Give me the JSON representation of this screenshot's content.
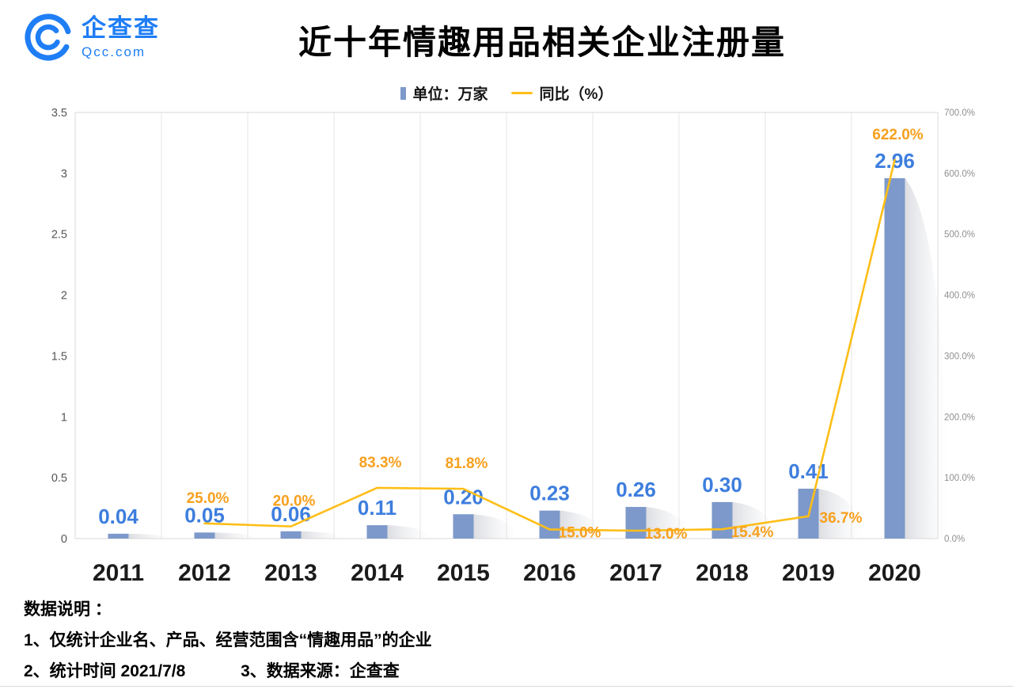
{
  "brand": {
    "name": "企查查",
    "domain": "Qcc.com",
    "color": "#1f7ef5"
  },
  "title": "近十年情趣用品相关企业注册量",
  "legend": {
    "bar_label": "单位：万家",
    "line_label": "同比（%）"
  },
  "footnotes": {
    "heading": "数据说明 ：",
    "line1": "1、仅统计企业名、产品、经营范围含“情趣用品”的企业",
    "line2": "2、统计时间 2021/7/8",
    "line3": "3、数据来源：企查查"
  },
  "chart_data": {
    "type": "bar",
    "subtype": "bar-line-combo",
    "title": "近十年情趣用品相关企业注册量",
    "categories": [
      "2011",
      "2012",
      "2013",
      "2014",
      "2015",
      "2016",
      "2017",
      "2018",
      "2019",
      "2020"
    ],
    "series": [
      {
        "name": "单位：万家",
        "type": "bar",
        "color": "#7d99cb",
        "label_color": "#3d7ede",
        "values": [
          0.04,
          0.05,
          0.06,
          0.11,
          0.2,
          0.23,
          0.26,
          0.3,
          0.41,
          2.96
        ],
        "labels": [
          "0.04",
          "0.05",
          "0.06",
          "0.11",
          "0.20",
          "0.23",
          "0.26",
          "0.30",
          "0.41",
          "2.96"
        ]
      },
      {
        "name": "同比（%）",
        "type": "line",
        "color": "#ffbe17",
        "label_color": "#f7a01e",
        "values": [
          null,
          25.0,
          20.0,
          83.3,
          81.8,
          15.0,
          13.0,
          15.4,
          36.7,
          622.0
        ],
        "labels": [
          "",
          "25.0%",
          "20.0%",
          "83.3%",
          "81.8%",
          "15.0%",
          "13.0%",
          "15.4%",
          "36.7%",
          "622.0%"
        ],
        "label_positions": [
          "",
          "above",
          "above",
          "above",
          "above",
          "below",
          "below",
          "below",
          "right",
          "above"
        ]
      }
    ],
    "left_axis": {
      "min": 0,
      "max": 3.5,
      "step": 0.5,
      "ticks": [
        "3.5",
        "3",
        "2.5",
        "2",
        "1.5",
        "1",
        "0.5",
        "0"
      ]
    },
    "right_axis": {
      "min": 0,
      "max": 700,
      "step": 100,
      "ticks": [
        "700.0%",
        "600.0%",
        "500.0%",
        "400.0%",
        "300.0%",
        "200.0%",
        "100.0%",
        "0.0%"
      ]
    },
    "grid": "vertical",
    "legend_position": "top",
    "style": {
      "grid_color": "#e4e4e4",
      "border_color": "#dadada",
      "axis_text_color": "#555555",
      "right_axis_text_color": "#8f8f8f",
      "x_label_color": "#1b1b1b"
    }
  }
}
